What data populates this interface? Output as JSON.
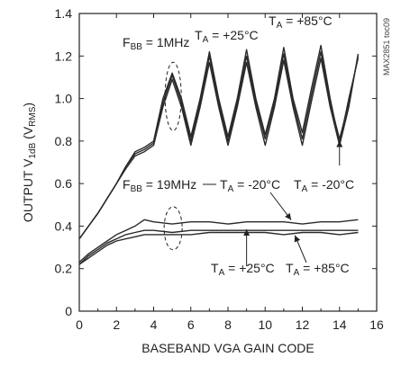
{
  "chart_data": {
    "type": "line",
    "xlabel": "BASEBAND VGA GAIN CODE",
    "ylabel": "OUTPUT V1dB (VRMS)",
    "xlim": [
      0,
      16
    ],
    "ylim": [
      0,
      1.4
    ],
    "x_ticks": [
      "0",
      "2",
      "4",
      "6",
      "8",
      "10",
      "12",
      "14",
      "16"
    ],
    "y_ticks": [
      "0",
      "0.2",
      "0.4",
      "0.6",
      "0.8",
      "1.0",
      "1.2",
      "1.4"
    ],
    "grid": false,
    "watermark": "MAX2851 toc09",
    "colors": {
      "line": "#2a2a2a",
      "axis": "#222222"
    },
    "annotations": {
      "fbb_1mhz": "FBB = 1MHz",
      "ta_p25_top": "TA = +25°C",
      "ta_p85_top": "TA = +85°C",
      "fbb_19mhz": "FBB = 19MHz",
      "ta_m20_a": "TA = -20°C",
      "ta_m20_b": "TA = -20°C",
      "ta_p25_bot": "TA = +25°C",
      "ta_p85_bot": "TA = +85°C"
    },
    "series": [
      {
        "group": "FBB = 1MHz",
        "temp": "TA = +85°C",
        "x": [
          0,
          0.5,
          1,
          1.5,
          2,
          2.5,
          3,
          3.5,
          4,
          4.5,
          5,
          5.5,
          6,
          6.5,
          7,
          7.5,
          8,
          8.5,
          9,
          9.5,
          10,
          10.5,
          11,
          11.5,
          12,
          12.5,
          13,
          13.5,
          14,
          14.5,
          15
        ],
        "y": [
          0.34,
          0.4,
          0.46,
          0.53,
          0.6,
          0.68,
          0.75,
          0.77,
          0.8,
          1.0,
          1.12,
          1.0,
          0.82,
          1.0,
          1.22,
          1.0,
          0.82,
          1.0,
          1.23,
          1.0,
          0.83,
          1.0,
          1.24,
          1.0,
          0.84,
          1.05,
          1.25,
          1.0,
          0.79,
          1.0,
          1.19
        ]
      },
      {
        "group": "FBB = 1MHz",
        "temp": "TA = +25°C",
        "x": [
          0,
          0.5,
          1,
          1.5,
          2,
          2.5,
          3,
          3.5,
          4,
          4.5,
          5,
          5.5,
          6,
          6.5,
          7,
          7.5,
          8,
          8.5,
          9,
          9.5,
          10,
          10.5,
          11,
          11.5,
          12,
          12.5,
          13,
          13.5,
          14,
          14.5,
          15
        ],
        "y": [
          0.34,
          0.4,
          0.46,
          0.53,
          0.6,
          0.68,
          0.74,
          0.76,
          0.79,
          0.98,
          1.11,
          0.98,
          0.8,
          0.98,
          1.2,
          0.98,
          0.8,
          0.98,
          1.2,
          0.98,
          0.81,
          0.98,
          1.21,
          0.98,
          0.81,
          1.02,
          1.22,
          0.98,
          0.81,
          0.98,
          1.2
        ]
      },
      {
        "group": "FBB = 1MHz",
        "temp": "TA = -20°C",
        "x": [
          0,
          0.5,
          1,
          1.5,
          2,
          2.5,
          3,
          3.5,
          4,
          4.5,
          5,
          5.5,
          6,
          6.5,
          7,
          7.5,
          8,
          8.5,
          9,
          9.5,
          10,
          10.5,
          11,
          11.5,
          12,
          12.5,
          13,
          13.5,
          14,
          14.5,
          15
        ],
        "y": [
          0.34,
          0.4,
          0.46,
          0.53,
          0.6,
          0.67,
          0.73,
          0.75,
          0.78,
          0.96,
          1.09,
          0.96,
          0.78,
          0.96,
          1.17,
          0.96,
          0.78,
          0.96,
          1.17,
          0.96,
          0.78,
          0.96,
          1.18,
          0.96,
          0.78,
          0.99,
          1.19,
          0.96,
          0.78,
          0.96,
          1.21
        ]
      },
      {
        "group": "FBB = 19MHz",
        "temp": "TA = -20°C",
        "x": [
          0,
          0.5,
          1,
          1.5,
          2,
          2.5,
          3,
          3.5,
          4,
          5,
          6,
          7,
          8,
          9,
          10,
          11,
          12,
          13,
          14,
          15
        ],
        "y": [
          0.23,
          0.27,
          0.3,
          0.33,
          0.36,
          0.38,
          0.4,
          0.43,
          0.42,
          0.41,
          0.42,
          0.42,
          0.41,
          0.42,
          0.42,
          0.42,
          0.41,
          0.42,
          0.42,
          0.43
        ]
      },
      {
        "group": "FBB = 19MHz",
        "temp": "TA = +25°C",
        "x": [
          0,
          0.5,
          1,
          1.5,
          2,
          2.5,
          3,
          3.5,
          4,
          5,
          6,
          7,
          8,
          9,
          10,
          11,
          12,
          13,
          14,
          15
        ],
        "y": [
          0.22,
          0.26,
          0.29,
          0.32,
          0.34,
          0.36,
          0.37,
          0.38,
          0.38,
          0.37,
          0.38,
          0.38,
          0.38,
          0.38,
          0.38,
          0.38,
          0.38,
          0.38,
          0.38,
          0.38
        ]
      },
      {
        "group": "FBB = 19MHz",
        "temp": "TA = +85°C",
        "x": [
          0,
          0.5,
          1,
          1.5,
          2,
          2.5,
          3,
          3.5,
          4,
          5,
          6,
          7,
          8,
          9,
          10,
          11,
          12,
          13,
          14,
          15
        ],
        "y": [
          0.22,
          0.25,
          0.28,
          0.31,
          0.33,
          0.34,
          0.35,
          0.36,
          0.36,
          0.36,
          0.36,
          0.37,
          0.37,
          0.37,
          0.37,
          0.36,
          0.37,
          0.37,
          0.36,
          0.37
        ]
      }
    ]
  }
}
